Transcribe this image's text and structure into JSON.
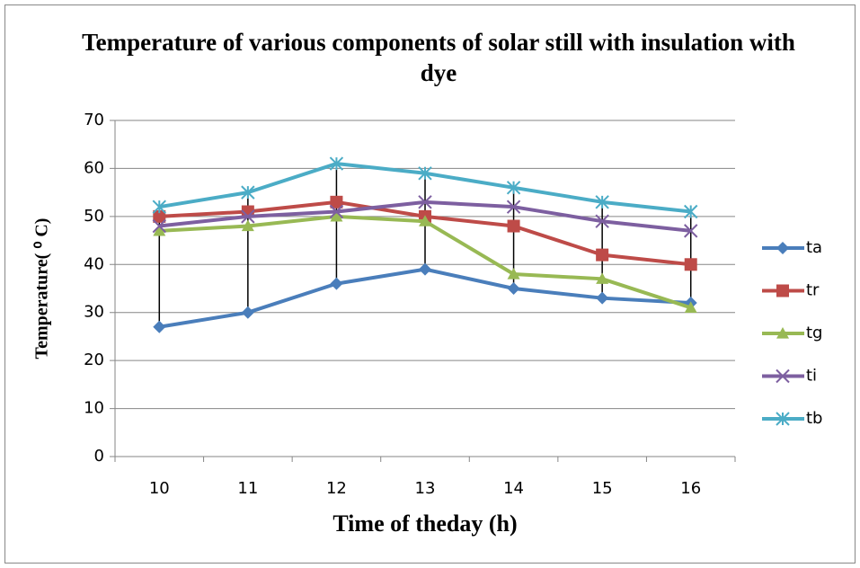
{
  "chart_data": {
    "type": "line",
    "title": "Temperature of various components of solar still with insulation with dye",
    "x_label": "Time of theday (h)",
    "y_label": "Temperature( ⁰ C)",
    "categories": [
      10,
      11,
      12,
      13,
      14,
      15,
      16
    ],
    "ylim": [
      0,
      70
    ],
    "yticks": [
      0,
      10,
      20,
      30,
      40,
      50,
      60,
      70
    ],
    "grid": true,
    "legend": "right",
    "high_low_lines": true,
    "series": [
      {
        "name": "ta",
        "color": "#4a7ebb",
        "marker": "diamond",
        "values": [
          27,
          30,
          36,
          39,
          35,
          33,
          32
        ]
      },
      {
        "name": "tr",
        "color": "#be4b48",
        "marker": "square",
        "values": [
          50,
          51,
          53,
          50,
          48,
          42,
          40
        ]
      },
      {
        "name": "tg",
        "color": "#98b954",
        "marker": "triangle",
        "values": [
          47,
          48,
          50,
          49,
          38,
          37,
          31
        ]
      },
      {
        "name": "ti",
        "color": "#7d5fa0",
        "marker": "x",
        "values": [
          48,
          50,
          51,
          53,
          52,
          49,
          47
        ]
      },
      {
        "name": "tb",
        "color": "#4bacc6",
        "marker": "asterisk",
        "values": [
          52,
          55,
          61,
          59,
          56,
          53,
          51
        ]
      }
    ]
  }
}
